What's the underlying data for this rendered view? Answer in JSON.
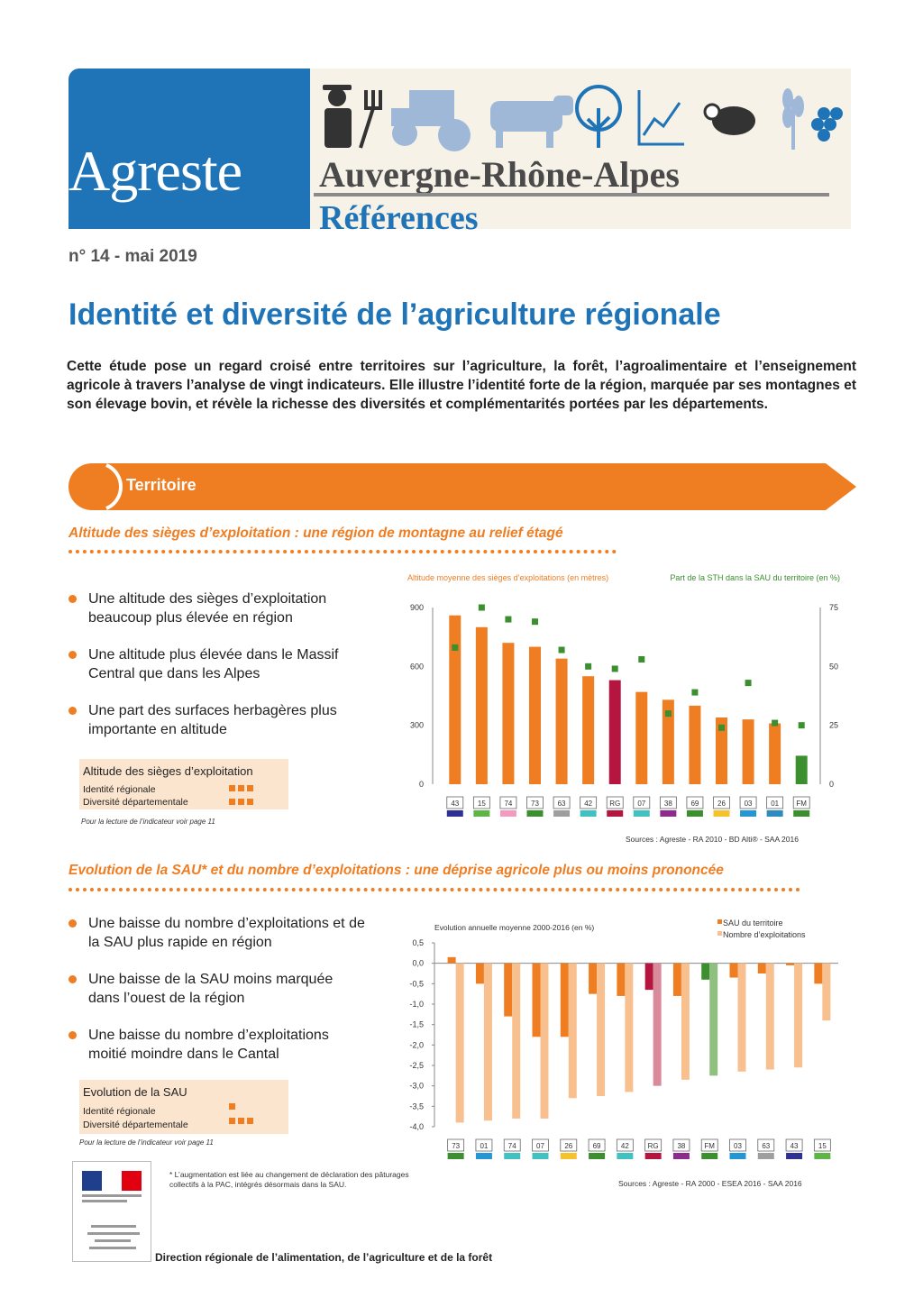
{
  "header": {
    "brand": "Agreste",
    "region": "Auvergne-Rhône-Alpes",
    "series": "Références",
    "issue": "n° 14 - mai 2019"
  },
  "title": "Identité et diversité de l’agriculture régionale",
  "intro": "Cette étude pose un regard croisé entre territoires sur l’agriculture, la forêt, l’agroalimentaire et l’enseignement agricole à travers l’analyse de vingt indicateurs. Elle illustre l’identité forte de la région, marquée par ses montagnes et son élevage bovin, et révèle la richesse des diversités et complémentarités portées par les départements.",
  "section": {
    "label": "Territoire"
  },
  "block1": {
    "subtitle": "Altitude des sièges d’exploitation : une région de montagne au relief étagé",
    "bullets": [
      "Une altitude des sièges d’exploitation beaucoup plus élevée en région",
      "Une altitude plus élevée dans le Massif Central que dans les Alpes",
      "Une part des surfaces herbagères plus importante en altitude"
    ],
    "legend_box": {
      "title": "Altitude des sièges d’exploitation",
      "row1": "Identité régionale",
      "row2": "Diversité départementale",
      "row1_level": 3,
      "row2_level": 3
    },
    "note": "Pour la lecture de l’indicateur voir page 11",
    "source": "Sources : Agreste - RA 2010 - BD Alti® - SAA 2016"
  },
  "block2": {
    "subtitle": "Evolution de la SAU* et du nombre d’exploitations : une déprise agricole plus ou moins prononcée",
    "bullets": [
      "Une baisse du nombre d’exploitations et de la SAU plus rapide en région",
      "Une baisse de la SAU moins marquée dans l’ouest de la région",
      "Une baisse du nombre d’exploitations moitié moindre dans le Cantal"
    ],
    "legend_box": {
      "title": "Evolution de la SAU",
      "row1": "Identité régionale",
      "row2": "Diversité départementale",
      "row1_level": 1,
      "row2_level": 3
    },
    "note": "Pour la lecture de l’indicateur voir page 11",
    "footnote": "* L’augmentation est liée au changement de déclaration des pâturages collectifs à la PAC, intégrés désormais dans la SAU.",
    "source": "Sources : Agreste - RA 2000 - ESEA 2016 - SAA 2016"
  },
  "footer": {
    "text": "Direction régionale de l’alimentation, de l’agriculture et de la forêt"
  },
  "colors": {
    "orange": "#ef7d22",
    "blue": "#1f73b7",
    "region": "#b5163f",
    "green": "#3b8f2f",
    "light_orange": "#f8c08f"
  },
  "chart_data": [
    {
      "type": "bar",
      "ylabel": "Altitude moyenne des sièges d’exploitations (en mètres)",
      "y2label": "Part de la STH dans la SAU du territoire (en %)",
      "ylim": [
        0,
        900
      ],
      "y2lim": [
        0,
        75
      ],
      "yticks": [
        "900",
        "600",
        "300",
        "0"
      ],
      "y2ticks": [
        "75",
        "50",
        "25",
        "0"
      ],
      "categories": [
        "43",
        "15",
        "74",
        "73",
        "63",
        "42",
        "RG",
        "07",
        "38",
        "69",
        "26",
        "03",
        "01",
        "FM"
      ],
      "dept_colors": [
        "#2e3192",
        "#5db546",
        "#f49ac1",
        "#3b8f2f",
        "#9e9e9e",
        "#41c2c0",
        "#b5163f",
        "#41c2c0",
        "#8e2c8e",
        "#3b8f2f",
        "#f6c22c",
        "#2596d4",
        "#2e8bc0",
        "#3b8f2f"
      ],
      "series": [
        {
          "values": [
            860,
            800,
            720,
            700,
            640,
            550,
            530,
            470,
            430,
            400,
            340,
            330,
            310,
            145
          ]
        },
        {
          "values": [
            58,
            75,
            70,
            69,
            57,
            50,
            49,
            53,
            30,
            39,
            24,
            43,
            26,
            25
          ]
        }
      ]
    },
    {
      "type": "bar",
      "ylabel": "Evolution annuelle moyenne 2000-2016 (en %)",
      "ylim": [
        -4.0,
        0.5
      ],
      "yticks": [
        "0,5",
        "0,0",
        "-0,5",
        "-1,0",
        "-1,5",
        "-2,0",
        "-2,5",
        "-3,0",
        "-3,5",
        "-4,0"
      ],
      "categories": [
        "73",
        "01",
        "74",
        "07",
        "26",
        "69",
        "42",
        "RG",
        "38",
        "FM",
        "03",
        "63",
        "43",
        "15"
      ],
      "dept_colors": [
        "#3b8f2f",
        "#2596d4",
        "#41c2c0",
        "#41c2c0",
        "#f6c22c",
        "#3b8f2f",
        "#41c2c0",
        "#b5163f",
        "#8e2c8e",
        "#3b8f2f",
        "#2596d4",
        "#9e9e9e",
        "#2e3192",
        "#5db546"
      ],
      "series": [
        {
          "name": "SAU du territoire",
          "values": [
            0.15,
            -0.5,
            -1.3,
            -1.8,
            -1.8,
            -0.75,
            -0.8,
            -0.65,
            -0.8,
            -0.4,
            -0.35,
            -0.25,
            -0.05,
            -0.5
          ]
        },
        {
          "name": "Nombre d’exploitations",
          "values": [
            -3.9,
            -3.85,
            -3.8,
            -3.8,
            -3.3,
            -3.25,
            -3.15,
            -3.0,
            -2.85,
            -2.75,
            -2.65,
            -2.6,
            -2.55,
            -1.4
          ]
        }
      ]
    }
  ]
}
